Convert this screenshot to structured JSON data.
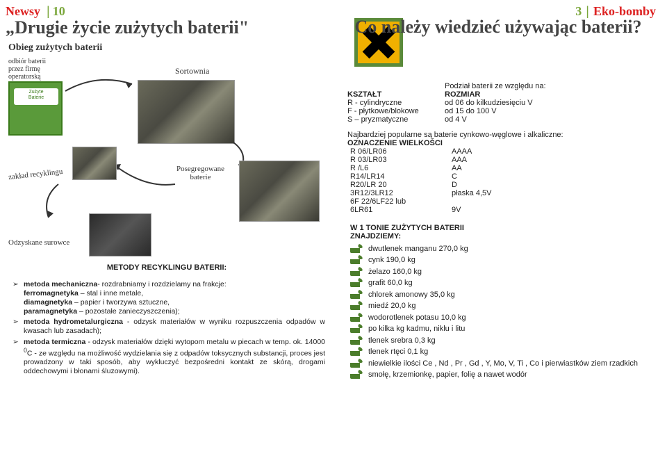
{
  "left": {
    "corner_label": "Newsy",
    "corner_num": "10",
    "title": "„Drugie życie zużytych baterii\"",
    "diagram": {
      "heading": "Obieg zużytych baterii",
      "labels": {
        "odbior": "odbiór baterii\nprzez firmę\noperatorską",
        "sortownia": "Sortownia",
        "zaklad": "zakład recyklingu",
        "posegregowane": "Posegregowane\nbaterie",
        "odzyskane": "Odzyskane surowce",
        "zuzyte": "Zużyte\nBaterie"
      }
    },
    "methods": {
      "title": "METODY RECYKLINGU BATERII:",
      "items": [
        "<b>metoda mechaniczna</b>- rozdrabniamy i rozdzielamy na frakcje:<br><b>ferromagnetyka</b> – stal i inne metale,<br><b>diamagnetyka</b> – papier i tworzywa sztuczne,<br><b>paramagnetyka</b> – pozostałe zanieczyszczenia);",
        "<b>metoda hydrometalurgiczna</b> - odzysk materiałów w wyniku rozpuszczenia odpadów w kwasach lub zasadach);",
        "<b>metoda termiczna</b> - odzysk materiałów dzięki wytopom metalu w piecach w temp. ok. 14000 <sup>0</sup>C - ze względu na możliwość wydzielania się z odpadów toksycznych substancji, proces jest prowadzony w taki sposób, aby wykluczyć bezpośredni kontakt ze skórą, drogami oddechowymi i błonami śluzowymi)."
      ]
    }
  },
  "right": {
    "corner_num": "3",
    "corner_label": "Eko-bomby",
    "title": "Co należy wiedzieć używając baterii?",
    "podzial_header": "Podział baterii ze względu na:",
    "shape_size": {
      "h1": "KSZTAŁT",
      "h2": "ROZMIAR",
      "rows": [
        [
          "R - cylindryczne",
          "od 06 do kilkudziesięciu V"
        ],
        [
          "F - płytkowe/blokowe",
          "od 15  do 100 V"
        ],
        [
          "S – pryzmatyczne",
          "od 4 V"
        ]
      ]
    },
    "popular_line": "Najbardziej popularne są baterie cynkowo-węglowe i alkaliczne:",
    "oznaczenie": "OZNACZENIE WIELKOŚCI",
    "codes": [
      [
        "R 06/LR06",
        "AAAA"
      ],
      [
        "R 03/LR03",
        "AAA"
      ],
      [
        " R /L6",
        "AA"
      ],
      [
        "R14/LR14",
        "C"
      ],
      [
        "R20/LR 20",
        "D"
      ],
      [
        "3R12/3LR12",
        "płaska 4,5V"
      ],
      [
        " 6F 22/6LF22 lub",
        ""
      ],
      [
        "6LR61",
        "9V"
      ]
    ],
    "tonie": {
      "title1": "W  1 TONIE ZUŻYTYCH BATERII",
      "title2": "ZNAJDZIEMY:",
      "items": [
        "dwutlenek manganu  270,0 kg",
        "cynk  190,0 kg",
        "żelazo  160,0 kg",
        "grafit  60,0 kg",
        "chlorek amonowy  35,0 kg",
        "miedź  20,0 kg",
        "wodorotlenek potasu  10,0 kg",
        "po kilka kg kadmu, niklu i litu",
        "tlenek srebra  0,3 kg",
        "tlenek rtęci  0,1 kg",
        "niewielkie ilości  Ce , Nd , Pr , Gd , Y, Mo, V, Ti , Co i  pierwiastków ziem rzadkich",
        "smołę, krzemionkę, papier, folię a nawet wodór"
      ]
    }
  }
}
